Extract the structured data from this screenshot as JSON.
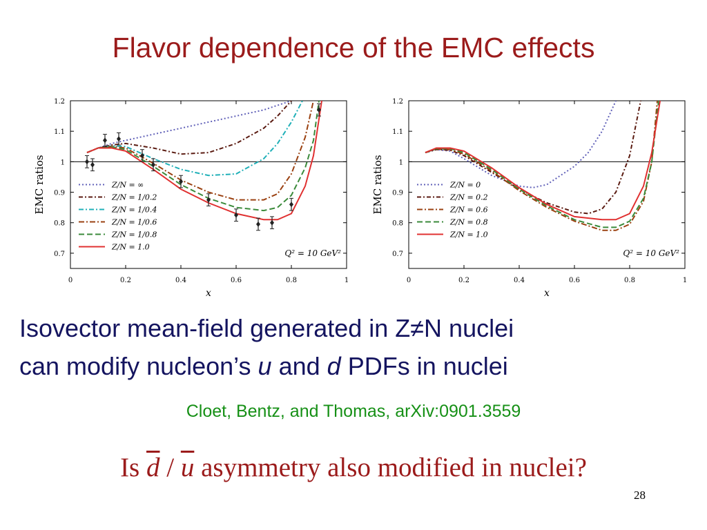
{
  "slide": {
    "title": "Flavor dependence of the EMC effects",
    "body_line1": "Isovector mean-field generated in Z≠N nuclei",
    "body_line2_a": "can modify nucleon’s ",
    "body_line2_u": "u",
    "body_line2_b": " and ",
    "body_line2_d": "d",
    "body_line2_c": " PDFs in nuclei",
    "citation": "Cloet, Bentz, and Thomas, arXiv:0901.3559",
    "question_a": "Is ",
    "question_d": "d",
    "question_slash": " / ",
    "question_u": "u",
    "question_b": "  asymmetry also modified in nuclei?",
    "page_number": "28",
    "title_color": "#9b1b1b",
    "body_color": "#14145f",
    "citation_color": "#169016"
  },
  "chart_data": [
    {
      "type": "line",
      "xlabel": "x",
      "ylabel": "EMC ratios",
      "xlim": [
        0,
        1
      ],
      "ylim": [
        0.65,
        1.2
      ],
      "xticks": [
        "0",
        "0.2",
        "0.4",
        "0.6",
        "0.8",
        "1"
      ],
      "yticks": [
        "0.7",
        "0.8",
        "0.9",
        "1",
        "1.1",
        "1.2"
      ],
      "reference_line": 1,
      "annotation": "Q² = 10 GeV²",
      "legend_position": "bottom-left",
      "series": [
        {
          "name": "Z/N = ∞",
          "color": "#6060b8",
          "dash": "2,3",
          "x": [
            0.06,
            0.1,
            0.15,
            0.2,
            0.3,
            0.4,
            0.5,
            0.6,
            0.7,
            0.75,
            0.8
          ],
          "y": [
            1.03,
            1.045,
            1.06,
            1.07,
            1.09,
            1.11,
            1.13,
            1.15,
            1.17,
            1.185,
            1.2
          ]
        },
        {
          "name": "Z/N = 1/0.2",
          "color": "#5a1a10",
          "dash": "6,3,2,3",
          "x": [
            0.06,
            0.1,
            0.15,
            0.2,
            0.3,
            0.4,
            0.5,
            0.6,
            0.7,
            0.75,
            0.8
          ],
          "y": [
            1.03,
            1.045,
            1.055,
            1.06,
            1.045,
            1.025,
            1.03,
            1.06,
            1.11,
            1.15,
            1.2
          ]
        },
        {
          "name": "Z/N = 1/0.4",
          "color": "#20b0b8",
          "dash": "7,3,2,3",
          "x": [
            0.06,
            0.1,
            0.15,
            0.2,
            0.3,
            0.4,
            0.5,
            0.6,
            0.7,
            0.75,
            0.8,
            0.84
          ],
          "y": [
            1.03,
            1.045,
            1.052,
            1.05,
            1.01,
            0.975,
            0.955,
            0.96,
            1.01,
            1.06,
            1.13,
            1.2
          ]
        },
        {
          "name": "Z/N = 1/0.6",
          "color": "#9a4010",
          "dash": "8,3,2,3",
          "x": [
            0.06,
            0.1,
            0.15,
            0.2,
            0.3,
            0.4,
            0.5,
            0.6,
            0.7,
            0.75,
            0.8,
            0.85,
            0.88
          ],
          "y": [
            1.03,
            1.045,
            1.05,
            1.045,
            0.995,
            0.94,
            0.9,
            0.875,
            0.875,
            0.895,
            0.96,
            1.08,
            1.2
          ]
        },
        {
          "name": "Z/N = 1/0.8",
          "color": "#3a8a3a",
          "dash": "8,4",
          "x": [
            0.06,
            0.1,
            0.15,
            0.2,
            0.3,
            0.4,
            0.5,
            0.6,
            0.7,
            0.75,
            0.8,
            0.85,
            0.88,
            0.9
          ],
          "y": [
            1.03,
            1.045,
            1.048,
            1.04,
            0.985,
            0.925,
            0.88,
            0.85,
            0.84,
            0.85,
            0.89,
            0.98,
            1.07,
            1.2
          ]
        },
        {
          "name": "Z/N = 1.0",
          "color": "#e03030",
          "dash": "",
          "x": [
            0.06,
            0.1,
            0.15,
            0.2,
            0.3,
            0.4,
            0.5,
            0.6,
            0.7,
            0.75,
            0.8,
            0.85,
            0.88,
            0.91
          ],
          "y": [
            1.03,
            1.045,
            1.045,
            1.035,
            0.975,
            0.91,
            0.865,
            0.83,
            0.81,
            0.81,
            0.83,
            0.92,
            1.02,
            1.2
          ]
        }
      ],
      "error_points": {
        "x": [
          0.06,
          0.08,
          0.125,
          0.175,
          0.26,
          0.3,
          0.4,
          0.5,
          0.6,
          0.68,
          0.73,
          0.8,
          0.9
        ],
        "y": [
          1.0,
          0.99,
          1.07,
          1.075,
          1.02,
          0.99,
          0.935,
          0.875,
          0.825,
          0.795,
          0.8,
          0.86,
          1.17
        ],
        "err": [
          0.02,
          0.02,
          0.02,
          0.02,
          0.02,
          0.02,
          0.02,
          0.02,
          0.02,
          0.02,
          0.02,
          0.02,
          0.02
        ]
      }
    },
    {
      "type": "line",
      "xlabel": "x",
      "ylabel": "EMC ratios",
      "xlim": [
        0,
        1
      ],
      "ylim": [
        0.65,
        1.2
      ],
      "xticks": [
        "0",
        "0.2",
        "0.4",
        "0.6",
        "0.8",
        "1"
      ],
      "yticks": [
        "0.7",
        "0.8",
        "0.9",
        "1",
        "1.1",
        "1.2"
      ],
      "reference_line": 1,
      "annotation": "Q² = 10 GeV²",
      "legend_position": "bottom-left",
      "series": [
        {
          "name": "Z/N = 0",
          "color": "#6060b8",
          "dash": "2,3",
          "x": [
            0.06,
            0.1,
            0.15,
            0.2,
            0.3,
            0.4,
            0.45,
            0.5,
            0.55,
            0.6,
            0.65,
            0.7,
            0.75
          ],
          "y": [
            1.03,
            1.04,
            1.035,
            1.01,
            0.955,
            0.92,
            0.915,
            0.925,
            0.955,
            0.985,
            1.03,
            1.1,
            1.2
          ]
        },
        {
          "name": "Z/N = 0.2",
          "color": "#5a1a10",
          "dash": "6,3,2,3",
          "x": [
            0.06,
            0.1,
            0.15,
            0.2,
            0.3,
            0.4,
            0.5,
            0.6,
            0.65,
            0.7,
            0.75,
            0.8,
            0.84
          ],
          "y": [
            1.03,
            1.04,
            1.038,
            1.02,
            0.965,
            0.91,
            0.865,
            0.835,
            0.83,
            0.845,
            0.9,
            1.02,
            1.2
          ]
        },
        {
          "name": "Z/N = 0.6",
          "color": "#9a4010",
          "dash": "8,3,2,3",
          "x": [
            0.06,
            0.1,
            0.15,
            0.2,
            0.3,
            0.4,
            0.5,
            0.6,
            0.7,
            0.75,
            0.8,
            0.85,
            0.88,
            0.9
          ],
          "y": [
            1.03,
            1.042,
            1.04,
            1.025,
            0.97,
            0.905,
            0.85,
            0.805,
            0.775,
            0.775,
            0.795,
            0.87,
            1.0,
            1.2
          ]
        },
        {
          "name": "Z/N = 0.8",
          "color": "#3a8a3a",
          "dash": "8,4",
          "x": [
            0.06,
            0.1,
            0.15,
            0.2,
            0.3,
            0.4,
            0.5,
            0.6,
            0.7,
            0.75,
            0.8,
            0.85,
            0.88,
            0.905
          ],
          "y": [
            1.03,
            1.043,
            1.043,
            1.03,
            0.975,
            0.91,
            0.855,
            0.81,
            0.785,
            0.785,
            0.805,
            0.88,
            1.0,
            1.2
          ]
        },
        {
          "name": "Z/N = 1.0",
          "color": "#e03030",
          "dash": "",
          "x": [
            0.06,
            0.1,
            0.15,
            0.2,
            0.3,
            0.4,
            0.5,
            0.6,
            0.7,
            0.75,
            0.8,
            0.85,
            0.88,
            0.91
          ],
          "y": [
            1.03,
            1.045,
            1.045,
            1.035,
            0.98,
            0.915,
            0.86,
            0.82,
            0.81,
            0.81,
            0.83,
            0.92,
            1.03,
            1.2
          ]
        }
      ]
    }
  ]
}
